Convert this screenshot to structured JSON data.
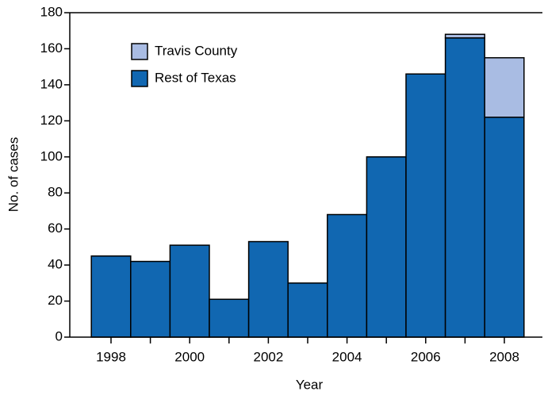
{
  "chart_data": {
    "type": "stacked-bar",
    "xlabel": "Year",
    "ylabel": "No. of cases",
    "categories": [
      "1998",
      null,
      "2000",
      null,
      "2002",
      null,
      "2004",
      null,
      "2006",
      null,
      "2008"
    ],
    "series": [
      {
        "name": "Rest of Texas",
        "color": "#1167b1",
        "values": [
          45,
          42,
          51,
          21,
          53,
          30,
          68,
          100,
          146,
          166,
          122
        ]
      },
      {
        "name": "Travis County",
        "color": "#a9bce3",
        "values": [
          0,
          0,
          0,
          0,
          0,
          0,
          0,
          0,
          0,
          2,
          33
        ]
      }
    ],
    "ylim": [
      0,
      180
    ],
    "yticks": [
      0,
      20,
      40,
      60,
      80,
      100,
      120,
      140,
      160,
      180
    ]
  }
}
